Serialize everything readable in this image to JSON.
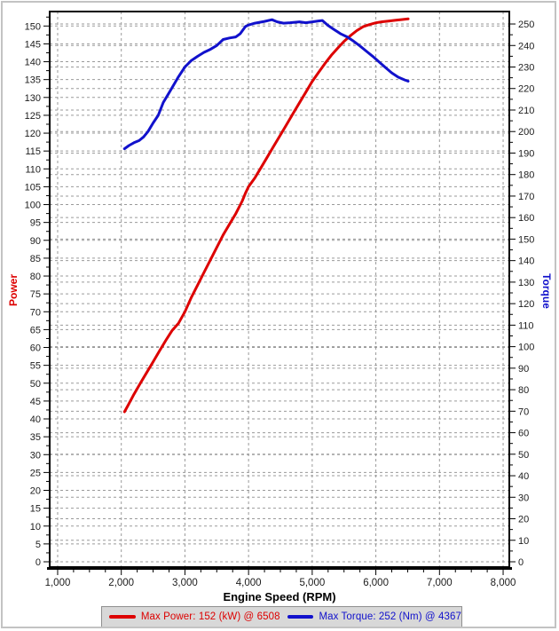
{
  "chart_data": {
    "type": "line",
    "xlabel": "Engine Speed (RPM)",
    "x_axis": {
      "title": "Engine Speed (RPM)",
      "tick_labels": [
        1000,
        2000,
        3000,
        4000,
        5000,
        6000,
        7000,
        8000
      ],
      "minor_step": 250,
      "range": [
        861,
        8111
      ]
    },
    "left_axis": {
      "title": "Power",
      "unit": "kW",
      "color": "#dd0000",
      "tick_labels": [
        0,
        5,
        10,
        15,
        20,
        25,
        30,
        35,
        40,
        45,
        50,
        55,
        60,
        65,
        70,
        75,
        80,
        85,
        90,
        95,
        100,
        105,
        110,
        115,
        120,
        125,
        130,
        135,
        140,
        145,
        150
      ],
      "minor_step": 2.5,
      "range": [
        0,
        154.3
      ]
    },
    "right_axis": {
      "title": "Torque",
      "unit": "Nm",
      "color": "#1111cc",
      "tick_labels": [
        0,
        10,
        20,
        30,
        40,
        50,
        60,
        70,
        80,
        90,
        100,
        110,
        120,
        130,
        140,
        150,
        160,
        170,
        180,
        190,
        200,
        210,
        220,
        230,
        240,
        250
      ],
      "minor_step": 5,
      "range": [
        0,
        256.2
      ]
    },
    "grid": {
      "on": true,
      "color": "#9a9a9a",
      "dash": "3 3"
    },
    "legend_position": "bottom",
    "series": [
      {
        "name": "Max Power",
        "legend": "Max Power: 152 (kW) @ 6508",
        "axis": "left",
        "color": "#dd0000",
        "max_value": 152,
        "max_at_rpm": 6508,
        "points": [
          [
            2050,
            42
          ],
          [
            2100,
            43.6
          ],
          [
            2200,
            46.9
          ],
          [
            2300,
            50
          ],
          [
            2400,
            53
          ],
          [
            2500,
            56
          ],
          [
            2600,
            59
          ],
          [
            2700,
            62
          ],
          [
            2800,
            64.8
          ],
          [
            2900,
            66.8
          ],
          [
            3000,
            70
          ],
          [
            3100,
            74
          ],
          [
            3200,
            77.5
          ],
          [
            3300,
            81
          ],
          [
            3400,
            84.5
          ],
          [
            3500,
            88
          ],
          [
            3600,
            91.5
          ],
          [
            3700,
            94.5
          ],
          [
            3800,
            97.5
          ],
          [
            3900,
            101
          ],
          [
            3950,
            103.2
          ],
          [
            4000,
            105
          ],
          [
            4100,
            107.5
          ],
          [
            4200,
            110.5
          ],
          [
            4300,
            113.5
          ],
          [
            4400,
            116.5
          ],
          [
            4500,
            119.5
          ],
          [
            4600,
            122.5
          ],
          [
            4700,
            125.5
          ],
          [
            4800,
            128.5
          ],
          [
            4900,
            131.5
          ],
          [
            5000,
            134.5
          ],
          [
            5100,
            137
          ],
          [
            5200,
            139.5
          ],
          [
            5300,
            141.8
          ],
          [
            5400,
            143.8
          ],
          [
            5500,
            145.7
          ],
          [
            5600,
            147.3
          ],
          [
            5700,
            148.7
          ],
          [
            5800,
            149.8
          ],
          [
            5900,
            150.4
          ],
          [
            6000,
            150.9
          ],
          [
            6100,
            151.2
          ],
          [
            6200,
            151.4
          ],
          [
            6300,
            151.6
          ],
          [
            6400,
            151.8
          ],
          [
            6508,
            152
          ]
        ]
      },
      {
        "name": "Max Torque",
        "legend": "Max Torque: 252 (Nm) @ 4367",
        "axis": "right",
        "color": "#1111cc",
        "max_value": 252,
        "max_at_rpm": 4367,
        "points": [
          [
            2050,
            192
          ],
          [
            2120,
            193.5
          ],
          [
            2200,
            194.8
          ],
          [
            2280,
            195.8
          ],
          [
            2350,
            197.5
          ],
          [
            2420,
            200
          ],
          [
            2500,
            204
          ],
          [
            2580,
            207.5
          ],
          [
            2660,
            213.5
          ],
          [
            2740,
            217.5
          ],
          [
            2820,
            221.5
          ],
          [
            2900,
            225.5
          ],
          [
            3000,
            230
          ],
          [
            3100,
            233
          ],
          [
            3200,
            235
          ],
          [
            3300,
            236.8
          ],
          [
            3400,
            238.2
          ],
          [
            3500,
            240
          ],
          [
            3600,
            242.8
          ],
          [
            3700,
            243.5
          ],
          [
            3800,
            244
          ],
          [
            3870,
            245.5
          ],
          [
            3950,
            248.8
          ],
          [
            4000,
            249.5
          ],
          [
            4100,
            250.4
          ],
          [
            4250,
            251.2
          ],
          [
            4367,
            252
          ],
          [
            4450,
            251
          ],
          [
            4550,
            250.4
          ],
          [
            4650,
            250.6
          ],
          [
            4800,
            251
          ],
          [
            4900,
            250.6
          ],
          [
            5000,
            251
          ],
          [
            5100,
            251.4
          ],
          [
            5160,
            251.6
          ],
          [
            5250,
            249.3
          ],
          [
            5350,
            247.3
          ],
          [
            5450,
            245.4
          ],
          [
            5550,
            244
          ],
          [
            5650,
            242
          ],
          [
            5750,
            239.8
          ],
          [
            5850,
            237.4
          ],
          [
            5950,
            235
          ],
          [
            6050,
            232.4
          ],
          [
            6150,
            229.8
          ],
          [
            6250,
            227.3
          ],
          [
            6350,
            225.3
          ],
          [
            6450,
            224
          ],
          [
            6508,
            223.4
          ]
        ]
      }
    ]
  },
  "style": {
    "axis_color": "#000000",
    "tick_text_color": "#1c1c1c",
    "grid_color": "#9a9a9a",
    "legend_bg": "#d8d8d8",
    "legend_border": "#8f8f8f",
    "frame_border": "#c3c3c3",
    "curve_width": 3
  }
}
